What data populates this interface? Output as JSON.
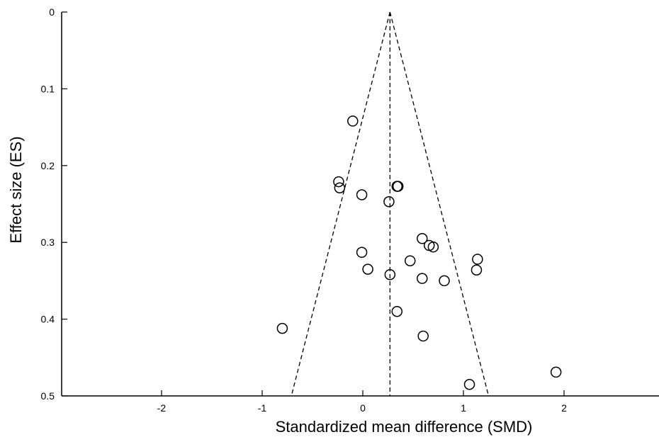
{
  "chart_data": {
    "type": "scatter",
    "title": "",
    "xlabel": "Standardized mean difference (SMD)",
    "ylabel": "Effect size (ES)",
    "xlim": [
      -2.9,
      2.9
    ],
    "ylim": [
      0,
      0.5
    ],
    "y_inverted": true,
    "x_ticks": [
      -2,
      -1,
      0,
      1,
      2
    ],
    "x_tick_labels": [
      "-2",
      "-1",
      "0",
      "1",
      "2"
    ],
    "y_ticks": [
      0,
      0.1,
      0.2,
      0.3,
      0.4,
      0.5
    ],
    "y_tick_labels": [
      "0",
      "0.1",
      "0.2",
      "0.3",
      "0.4",
      "0.5"
    ],
    "grid": false,
    "funnel": {
      "center": 0.27,
      "apex_y": 0,
      "base_y": 0.5,
      "base_x_left": -0.71,
      "base_x_right": 1.25
    },
    "points": [
      {
        "x": -0.1,
        "y": 0.142
      },
      {
        "x": -0.24,
        "y": 0.221
      },
      {
        "x": -0.23,
        "y": 0.229
      },
      {
        "x": -0.01,
        "y": 0.238
      },
      {
        "x": 0.34,
        "y": 0.227
      },
      {
        "x": 0.35,
        "y": 0.227
      },
      {
        "x": 0.26,
        "y": 0.247
      },
      {
        "x": 0.59,
        "y": 0.295
      },
      {
        "x": 0.66,
        "y": 0.304
      },
      {
        "x": 0.7,
        "y": 0.306
      },
      {
        "x": -0.01,
        "y": 0.313
      },
      {
        "x": 1.14,
        "y": 0.322
      },
      {
        "x": 0.47,
        "y": 0.324
      },
      {
        "x": 1.13,
        "y": 0.336
      },
      {
        "x": 0.05,
        "y": 0.335
      },
      {
        "x": 0.27,
        "y": 0.342
      },
      {
        "x": 0.59,
        "y": 0.347
      },
      {
        "x": 0.81,
        "y": 0.35
      },
      {
        "x": 0.34,
        "y": 0.39
      },
      {
        "x": -0.8,
        "y": 0.412
      },
      {
        "x": 0.6,
        "y": 0.422
      },
      {
        "x": 1.92,
        "y": 0.469
      },
      {
        "x": 1.06,
        "y": 0.485
      }
    ]
  }
}
